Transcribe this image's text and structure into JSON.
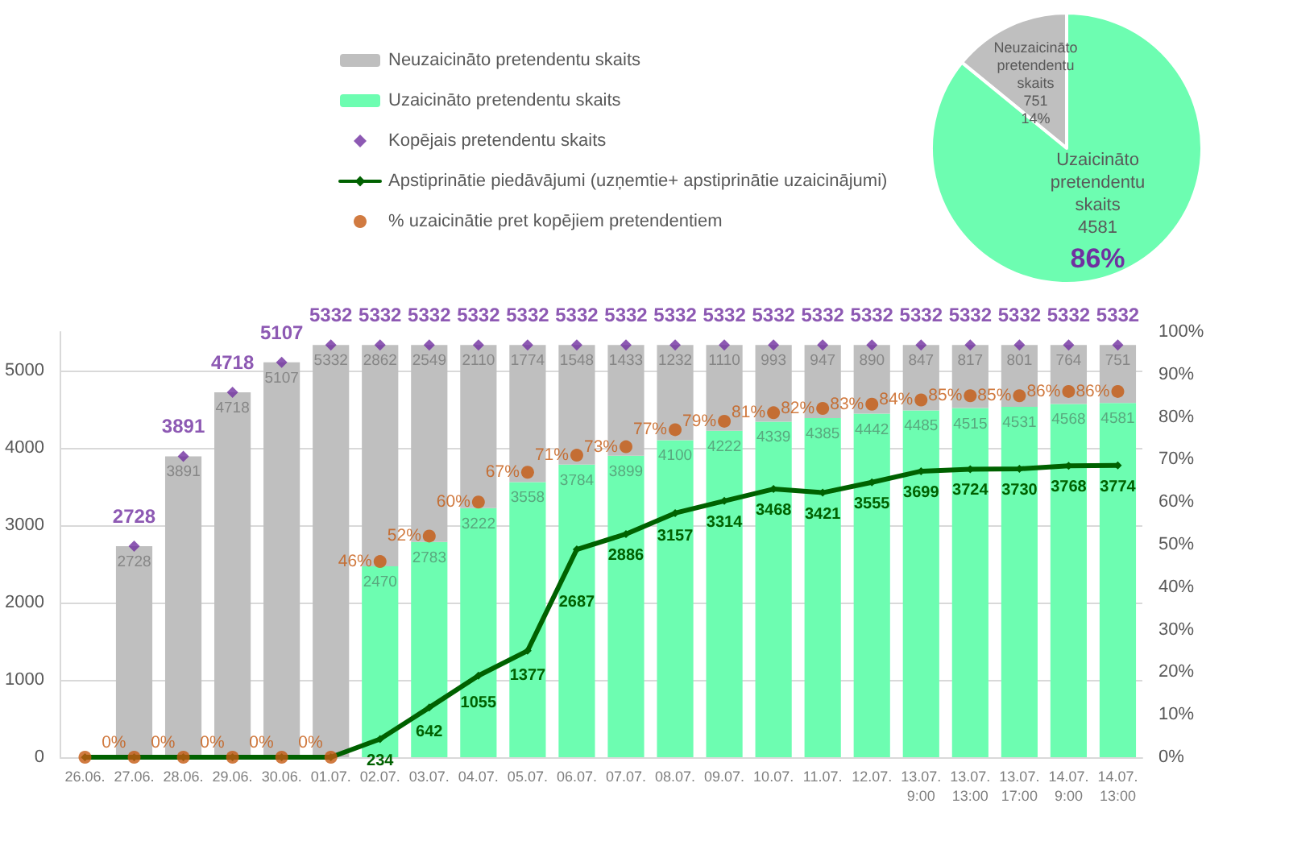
{
  "chart_data": [
    {
      "type": "bar",
      "stacked": true,
      "legend": "top",
      "grid": "y",
      "categories": [
        "26.06.",
        "27.06.",
        "28.06.",
        "29.06.",
        "30.06.",
        "01.07.",
        "02.07.",
        "03.07.",
        "04.07.",
        "05.07.",
        "06.07.",
        "07.07.",
        "08.07.",
        "09.07.",
        "10.07.",
        "11.07.",
        "12.07.",
        "13.07.\n9:00",
        "13.07.\n13:00",
        "13.07.\n17:00",
        "14.07.\n9:00",
        "14.07.\n13:00"
      ],
      "ylim": [
        0,
        5500
      ],
      "yticks": [
        0,
        1000,
        2000,
        3000,
        4000,
        5000
      ],
      "y2lim": [
        0,
        100
      ],
      "y2ticks": [
        {
          "value": 0,
          "label": "0%"
        },
        {
          "value": 10,
          "label": "10%"
        },
        {
          "value": 20,
          "label": "20%"
        },
        {
          "value": 30,
          "label": "30%"
        },
        {
          "value": 40,
          "label": "40%"
        },
        {
          "value": 50,
          "label": "50%"
        },
        {
          "value": 60,
          "label": "60%"
        },
        {
          "value": 70,
          "label": "70%"
        },
        {
          "value": 80,
          "label": "80%"
        },
        {
          "value": 90,
          "label": "90%"
        },
        {
          "value": 100,
          "label": "100%"
        }
      ],
      "series": [
        {
          "name": "Uzaicināto pretendentu skaits",
          "type": "bar",
          "color": "#6dfdb1",
          "values": [
            0,
            0,
            0,
            0,
            0,
            0,
            2470,
            2783,
            3222,
            3558,
            3784,
            3899,
            4100,
            4222,
            4339,
            4385,
            4442,
            4485,
            4515,
            4531,
            4568,
            4581
          ],
          "value_labels": [
            null,
            null,
            null,
            null,
            null,
            null,
            "2470",
            "2783",
            "3222",
            "3558",
            "3784",
            "3899",
            "4100",
            "4222",
            "4339",
            "4385",
            "4442",
            "4485",
            "4515",
            "4531",
            "4568",
            "4581"
          ]
        },
        {
          "name": "Neuzaicināto pretendentu skaits",
          "type": "bar",
          "color": "#bfbfbf",
          "values": [
            null,
            2728,
            3891,
            4718,
            5107,
            5332,
            2862,
            2549,
            2110,
            1774,
            1548,
            1433,
            1232,
            1110,
            993,
            947,
            890,
            847,
            817,
            801,
            764,
            751
          ],
          "value_labels": [
            null,
            "2728",
            "3891",
            "4718",
            "5107",
            "5332",
            "2862",
            "2549",
            "2110",
            "1774",
            "1548",
            "1433",
            "1232",
            "1110",
            "993",
            "947",
            "890",
            "847",
            "817",
            "801",
            "764",
            "751"
          ]
        },
        {
          "name": "Kopējais pretendentu skaits",
          "type": "scatter",
          "marker": "diamond",
          "color": "#7030a0",
          "values": [
            null,
            2728,
            3891,
            4718,
            5107,
            5332,
            5332,
            5332,
            5332,
            5332,
            5332,
            5332,
            5332,
            5332,
            5332,
            5332,
            5332,
            5332,
            5332,
            5332,
            5332,
            5332
          ],
          "value_labels": [
            null,
            "2728",
            "3891",
            "4718",
            "5107",
            "5332",
            "5332",
            "5332",
            "5332",
            "5332",
            "5332",
            "5332",
            "5332",
            "5332",
            "5332",
            "5332",
            "5332",
            "5332",
            "5332",
            "5332",
            "5332",
            "5332"
          ]
        },
        {
          "name": "Apstiprinātie piedāvājumi (uzņemtie+ apstiprinātie uzaicinājumi)",
          "type": "line",
          "marker": "diamond",
          "color": "#006100",
          "values": [
            0,
            0,
            0,
            0,
            0,
            0,
            234,
            642,
            1055,
            1377,
            2687,
            2886,
            3157,
            3314,
            3468,
            3421,
            3555,
            3699,
            3724,
            3730,
            3768,
            3774
          ],
          "value_labels": [
            null,
            null,
            null,
            null,
            null,
            null,
            "234",
            "642",
            "1055",
            "1377",
            "2687",
            "2886",
            "3157",
            "3314",
            "3468",
            "3421",
            "3555",
            "3699",
            "3724",
            "3730",
            "3768",
            "3774"
          ]
        },
        {
          "name": "% uzaicinātie pret kopējiem pretendentiem",
          "type": "scatter",
          "axis": "y2",
          "marker": "circle",
          "color": "#c55a11",
          "values": [
            0,
            0,
            0,
            0,
            0,
            0,
            46,
            52,
            60,
            67,
            71,
            73,
            77,
            79,
            81,
            82,
            83,
            84,
            85,
            85,
            86,
            86
          ],
          "value_labels": [
            null,
            "0%",
            "0%",
            "0%",
            "0%",
            "0%",
            "46%",
            "52%",
            "60%",
            "67%",
            "71%",
            "73%",
            "77%",
            "79%",
            "81%",
            "82%",
            "83%",
            "84%",
            "85%",
            "85%",
            "86%",
            "86%"
          ]
        }
      ]
    },
    {
      "type": "pie",
      "categories": [
        "Neuzaicināto pretendentu skaits",
        "Uzaicināto pretendentu skaits"
      ],
      "values": [
        751,
        4581
      ],
      "colors": [
        "#bfbfbf",
        "#6dfdb1"
      ],
      "value_labels": [
        "751\n14%",
        "4581\n86%"
      ]
    }
  ]
}
